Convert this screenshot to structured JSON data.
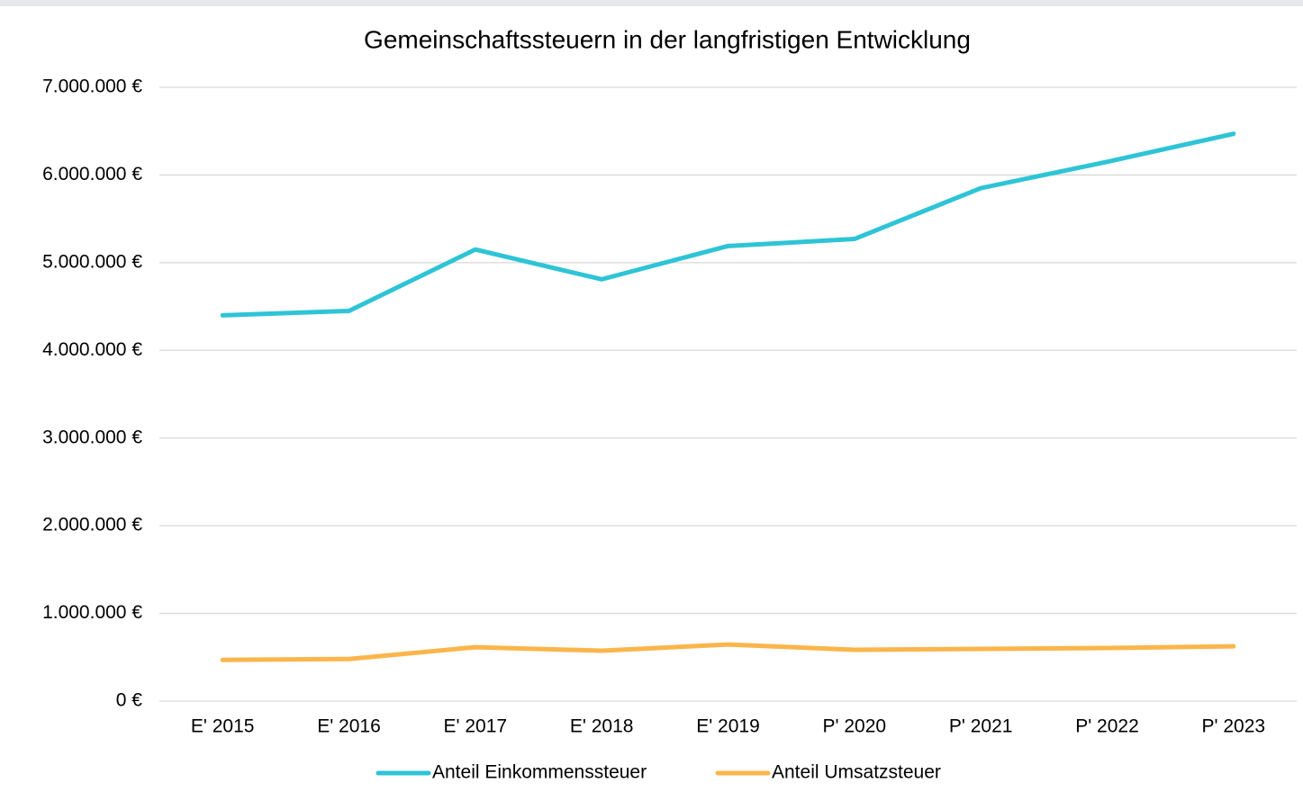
{
  "chart_data": {
    "type": "line",
    "title": "Gemeinschaftssteuern in der langfristigen Entwicklung",
    "categories": [
      "E' 2015",
      "E' 2016",
      "E' 2017",
      "E' 2018",
      "E' 2019",
      "P' 2020",
      "P' 2021",
      "P' 2022",
      "P' 2023"
    ],
    "series": [
      {
        "name": "Anteil Einkommenssteuer",
        "color": "#2ec4d6",
        "values": [
          4400000,
          4450000,
          5150000,
          4810000,
          5190000,
          5270000,
          5850000,
          6150000,
          6470000
        ]
      },
      {
        "name": "Anteil Umsatzsteuer",
        "color": "#fbb54a",
        "values": [
          470000,
          480000,
          615000,
          575000,
          645000,
          585000,
          595000,
          605000,
          625000
        ]
      }
    ],
    "ylim": [
      0,
      7000000
    ],
    "yticks": [
      {
        "value": 0,
        "label": "0 €"
      },
      {
        "value": 1000000,
        "label": "1.000.000 €"
      },
      {
        "value": 2000000,
        "label": "2.000.000 €"
      },
      {
        "value": 3000000,
        "label": "3.000.000 €"
      },
      {
        "value": 4000000,
        "label": "4.000.000 €"
      },
      {
        "value": 5000000,
        "label": "5.000.000 €"
      },
      {
        "value": 6000000,
        "label": "6.000.000 €"
      },
      {
        "value": 7000000,
        "label": "7.000.000 €"
      }
    ],
    "grid": true,
    "legend": "bottom"
  }
}
